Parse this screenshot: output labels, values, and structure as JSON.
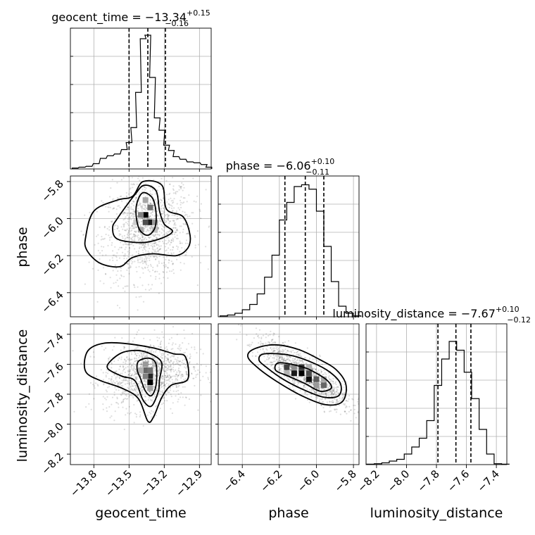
{
  "chart_data": {
    "type": "corner",
    "parameters": [
      {
        "name": "geocent_time",
        "xlabel": "geocent_time",
        "title": "geocent_time = −13.34",
        "title_plus": "+0.15",
        "title_minus": "−0.16",
        "range": [
          -14.0,
          -12.8
        ],
        "ticks": [
          -13.8,
          -13.5,
          -13.2,
          -12.9
        ],
        "tick_labels": [
          "−13.8",
          "−13.5",
          "−13.2",
          "−12.9"
        ],
        "median": -13.34,
        "quantiles": [
          -13.5,
          -13.34,
          -13.19
        ],
        "hist_x": [
          -13.96,
          -13.9,
          -13.84,
          -13.78,
          -13.72,
          -13.66,
          -13.6,
          -13.54,
          -13.5,
          -13.46,
          -13.42,
          -13.38,
          -13.34,
          -13.3,
          -13.26,
          -13.22,
          -13.18,
          -13.14,
          -13.1,
          -13.04,
          -12.98,
          -12.92,
          -12.86,
          -12.82
        ],
        "hist_y": [
          1,
          2,
          3,
          6,
          12,
          15,
          17,
          22,
          30,
          47,
          87,
          148,
          152,
          104,
          58,
          44,
          27,
          21,
          14,
          11,
          8,
          7,
          5,
          2
        ],
        "hist_ymax": 160
      },
      {
        "name": "phase",
        "xlabel": "phase",
        "ylabel": "phase",
        "title": "phase = −6.06",
        "title_plus": "+0.10",
        "title_minus": "−0.11",
        "range": [
          -6.53,
          -5.77
        ],
        "ticks": [
          -6.4,
          -6.2,
          -6.0,
          -5.8
        ],
        "tick_labels": [
          "−6.4",
          "−6.2",
          "−6.0",
          "−5.8"
        ],
        "median": -6.06,
        "quantiles": [
          -6.17,
          -6.06,
          -5.96
        ],
        "hist_x": [
          -6.5,
          -6.46,
          -6.42,
          -6.38,
          -6.34,
          -6.3,
          -6.26,
          -6.22,
          -6.18,
          -6.14,
          -6.1,
          -6.06,
          -6.02,
          -5.98,
          -5.94,
          -5.9,
          -5.86,
          -5.82,
          -5.78
        ],
        "hist_y": [
          1,
          2,
          4,
          8,
          14,
          26,
          45,
          70,
          110,
          130,
          148,
          150,
          145,
          120,
          80,
          40,
          12,
          4,
          1
        ],
        "hist_ymax": 160
      },
      {
        "name": "luminosity_distance",
        "xlabel": "luminosity_distance",
        "ylabel": "luminosity_distance",
        "title": "luminosity_distance = −7.67",
        "title_plus": "+0.10",
        "title_minus": "−0.12",
        "range": [
          -8.27,
          -7.33
        ],
        "ticks": [
          -8.2,
          -8.0,
          -7.8,
          -7.6,
          -7.4
        ],
        "tick_labels": [
          "−8.2",
          "−8.0",
          "−7.8",
          "−7.6",
          "−7.4"
        ],
        "median": -7.67,
        "quantiles": [
          -7.79,
          -7.67,
          -7.57
        ],
        "hist_x": [
          -8.24,
          -8.19,
          -8.14,
          -8.09,
          -8.04,
          -7.99,
          -7.94,
          -7.89,
          -7.84,
          -7.79,
          -7.74,
          -7.69,
          -7.64,
          -7.59,
          -7.54,
          -7.49,
          -7.44,
          -7.39,
          -7.34
        ],
        "hist_y": [
          0.5,
          1,
          2,
          4,
          6,
          12,
          20,
          30,
          50,
          90,
          120,
          140,
          130,
          105,
          75,
          40,
          12,
          1,
          0.5
        ],
        "hist_ymax": 160
      }
    ],
    "pairs": [
      {
        "x_param": 0,
        "y_param": 1,
        "mean": [
          -13.34,
          -6.06
        ],
        "sd": [
          0.18,
          0.13
        ],
        "corr": 0.15,
        "hist_cells": [
          {
            "x": -13.36,
            "y": -5.98,
            "v": 1.0
          },
          {
            "x": -13.32,
            "y": -6.02,
            "v": 0.9
          },
          {
            "x": -13.36,
            "y": -6.02,
            "v": 0.7
          },
          {
            "x": -13.32,
            "y": -5.94,
            "v": 0.55
          },
          {
            "x": -13.4,
            "y": -5.98,
            "v": 0.5
          },
          {
            "x": -13.4,
            "y": -6.06,
            "v": 0.35
          },
          {
            "x": -13.28,
            "y": -6.02,
            "v": 0.4
          },
          {
            "x": -13.36,
            "y": -5.9,
            "v": 0.35
          },
          {
            "x": -13.28,
            "y": -6.06,
            "v": 0.25
          },
          {
            "x": -13.44,
            "y": -6.02,
            "v": 0.2
          }
        ],
        "contours": [
          [
            [
              -13.43,
              -5.91
            ],
            [
              -13.38,
              -5.86
            ],
            [
              -13.3,
              -5.89
            ],
            [
              -13.27,
              -5.97
            ],
            [
              -13.28,
              -6.05
            ],
            [
              -13.34,
              -6.09
            ],
            [
              -13.41,
              -6.06
            ],
            [
              -13.44,
              -5.98
            ]
          ],
          [
            [
              -13.6,
              -6.0
            ],
            [
              -13.45,
              -5.87
            ],
            [
              -13.37,
              -5.82
            ],
            [
              -13.27,
              -5.85
            ],
            [
              -13.24,
              -5.96
            ],
            [
              -13.2,
              -6.03
            ],
            [
              -13.13,
              -6.07
            ],
            [
              -13.24,
              -6.11
            ],
            [
              -13.4,
              -6.13
            ],
            [
              -13.6,
              -6.11
            ],
            [
              -13.64,
              -6.05
            ]
          ],
          [
            [
              -13.87,
              -6.1
            ],
            [
              -13.8,
              -5.96
            ],
            [
              -13.6,
              -5.9
            ],
            [
              -13.47,
              -5.88
            ],
            [
              -13.38,
              -5.8
            ],
            [
              -13.22,
              -5.82
            ],
            [
              -13.18,
              -5.95
            ],
            [
              -13.04,
              -5.99
            ],
            [
              -12.98,
              -6.09
            ],
            [
              -13.0,
              -6.16
            ],
            [
              -13.1,
              -6.2
            ],
            [
              -13.3,
              -6.19
            ],
            [
              -13.47,
              -6.21
            ],
            [
              -13.58,
              -6.26
            ],
            [
              -13.75,
              -6.24
            ],
            [
              -13.86,
              -6.17
            ]
          ]
        ]
      },
      {
        "x_param": 0,
        "y_param": 2,
        "mean": [
          -13.34,
          -7.67
        ],
        "sd": [
          0.18,
          0.11
        ],
        "corr": 0.2,
        "hist_cells": [
          {
            "x": -13.32,
            "y": -7.72,
            "v": 1.0
          },
          {
            "x": -13.32,
            "y": -7.68,
            "v": 0.85
          },
          {
            "x": -13.36,
            "y": -7.64,
            "v": 0.6
          },
          {
            "x": -13.32,
            "y": -7.64,
            "v": 0.55
          },
          {
            "x": -13.36,
            "y": -7.68,
            "v": 0.5
          },
          {
            "x": -13.36,
            "y": -7.6,
            "v": 0.4
          },
          {
            "x": -13.32,
            "y": -7.76,
            "v": 0.35
          },
          {
            "x": -13.4,
            "y": -7.64,
            "v": 0.3
          },
          {
            "x": -13.28,
            "y": -7.6,
            "v": 0.25
          }
        ],
        "contours": [
          [
            [
              -13.42,
              -7.58
            ],
            [
              -13.33,
              -7.56
            ],
            [
              -13.27,
              -7.6
            ],
            [
              -13.27,
              -7.74
            ],
            [
              -13.31,
              -7.81
            ],
            [
              -13.36,
              -7.78
            ],
            [
              -13.4,
              -7.7
            ],
            [
              -13.43,
              -7.64
            ]
          ],
          [
            [
              -13.66,
              -7.58
            ],
            [
              -13.55,
              -7.52
            ],
            [
              -13.4,
              -7.51
            ],
            [
              -13.27,
              -7.55
            ],
            [
              -13.22,
              -7.6
            ],
            [
              -13.24,
              -7.7
            ],
            [
              -13.25,
              -7.78
            ],
            [
              -13.31,
              -7.88
            ],
            [
              -13.38,
              -7.84
            ],
            [
              -13.45,
              -7.71
            ],
            [
              -13.56,
              -7.68
            ],
            [
              -13.68,
              -7.63
            ]
          ],
          [
            [
              -13.84,
              -7.5
            ],
            [
              -13.72,
              -7.46
            ],
            [
              -13.55,
              -7.46
            ],
            [
              -13.3,
              -7.49
            ],
            [
              -13.12,
              -7.53
            ],
            [
              -13.02,
              -7.55
            ],
            [
              -13.0,
              -7.7
            ],
            [
              -13.14,
              -7.74
            ],
            [
              -13.22,
              -7.82
            ],
            [
              -13.29,
              -7.95
            ],
            [
              -13.34,
              -7.98
            ],
            [
              -13.42,
              -7.83
            ],
            [
              -13.56,
              -7.76
            ],
            [
              -13.74,
              -7.71
            ],
            [
              -13.86,
              -7.66
            ],
            [
              -13.88,
              -7.58
            ]
          ]
        ]
      },
      {
        "x_param": 1,
        "y_param": 2,
        "mean": [
          -6.06,
          -7.67
        ],
        "sd": [
          0.12,
          0.11
        ],
        "corr": 0.85,
        "hist_cells": [
          {
            "x": -6.08,
            "y": -7.66,
            "v": 1.0
          },
          {
            "x": -6.04,
            "y": -7.7,
            "v": 0.95
          },
          {
            "x": -6.12,
            "y": -7.66,
            "v": 0.9
          },
          {
            "x": -6.08,
            "y": -7.62,
            "v": 0.8
          },
          {
            "x": -6.04,
            "y": -7.66,
            "v": 0.7
          },
          {
            "x": -6.0,
            "y": -7.7,
            "v": 0.65
          },
          {
            "x": -6.16,
            "y": -7.62,
            "v": 0.75
          },
          {
            "x": -5.96,
            "y": -7.74,
            "v": 0.6
          },
          {
            "x": -6.12,
            "y": -7.62,
            "v": 0.45
          },
          {
            "x": -6.0,
            "y": -7.74,
            "v": 0.4
          },
          {
            "x": -5.96,
            "y": -7.7,
            "v": 0.35
          },
          {
            "x": -6.16,
            "y": -7.66,
            "v": 0.3
          },
          {
            "x": -6.04,
            "y": -7.62,
            "v": 0.3
          }
        ],
        "contours": [
          [
            [
              -6.2,
              -7.59
            ],
            [
              -6.07,
              -7.62
            ],
            [
              -6.0,
              -7.66
            ],
            [
              -5.94,
              -7.71
            ],
            [
              -5.92,
              -7.76
            ],
            [
              -5.98,
              -7.78
            ],
            [
              -6.06,
              -7.73
            ],
            [
              -6.15,
              -7.68
            ],
            [
              -6.22,
              -7.64
            ]
          ],
          [
            [
              -6.28,
              -7.53
            ],
            [
              -6.14,
              -7.54
            ],
            [
              -6.02,
              -7.59
            ],
            [
              -5.93,
              -7.65
            ],
            [
              -5.87,
              -7.73
            ],
            [
              -5.88,
              -7.81
            ],
            [
              -5.96,
              -7.82
            ],
            [
              -6.07,
              -7.77
            ],
            [
              -6.18,
              -7.7
            ],
            [
              -6.27,
              -7.62
            ],
            [
              -6.31,
              -7.57
            ]
          ],
          [
            [
              -6.34,
              -7.5
            ],
            [
              -6.23,
              -7.47
            ],
            [
              -6.1,
              -7.5
            ],
            [
              -5.98,
              -7.57
            ],
            [
              -5.89,
              -7.64
            ],
            [
              -5.84,
              -7.74
            ],
            [
              -5.86,
              -7.85
            ],
            [
              -5.95,
              -7.87
            ],
            [
              -6.08,
              -7.81
            ],
            [
              -6.22,
              -7.71
            ],
            [
              -6.32,
              -7.62
            ],
            [
              -6.37,
              -7.55
            ]
          ]
        ]
      }
    ],
    "grid": true,
    "legend": "none"
  }
}
